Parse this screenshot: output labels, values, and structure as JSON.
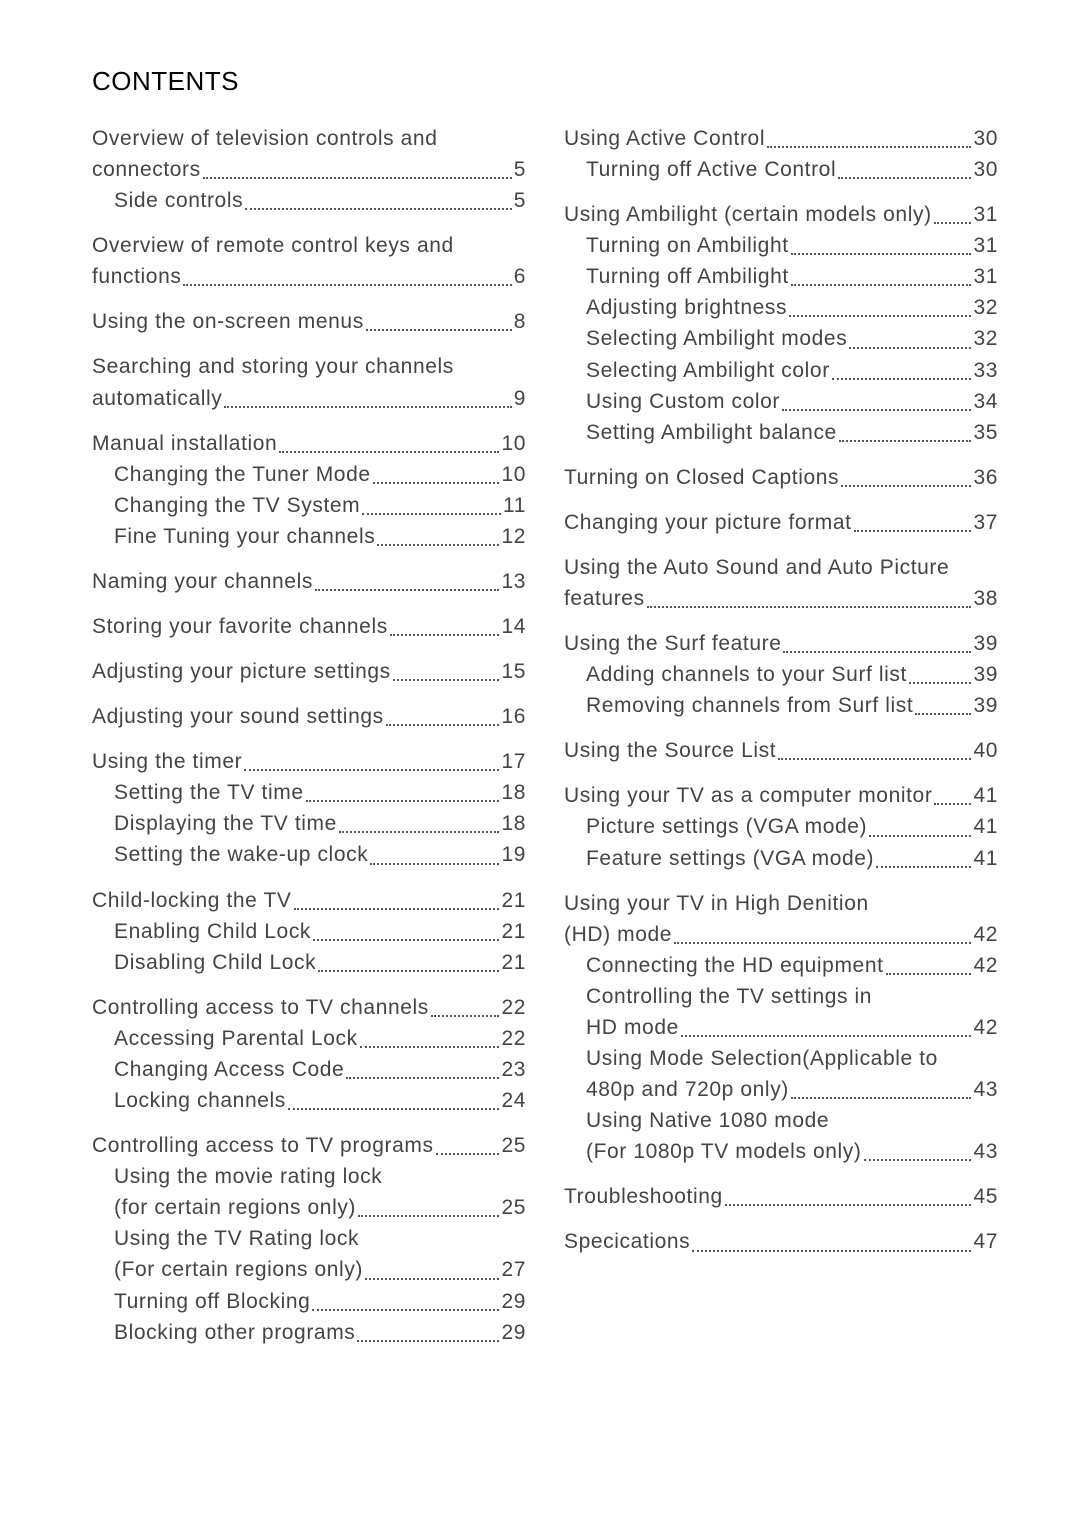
{
  "heading": "CONTENTS",
  "columns": {
    "left": [
      {
        "type": "section",
        "entries": [
          {
            "label": "Overview of television controls and",
            "wrap": "connectors",
            "page": "5"
          },
          {
            "label": "Side controls",
            "page": "5",
            "sub": true
          }
        ]
      },
      {
        "type": "section",
        "entries": [
          {
            "label": "Overview of remote control keys and",
            "wrap": "functions",
            "page": "6"
          }
        ]
      },
      {
        "type": "section",
        "entries": [
          {
            "label": "Using the on-screen menus",
            "page": "8"
          }
        ]
      },
      {
        "type": "section",
        "entries": [
          {
            "label": "Searching and storing your channels",
            "wrap": "automatically",
            "page": "9"
          }
        ]
      },
      {
        "type": "section",
        "entries": [
          {
            "label": "Manual installation",
            "page": "10"
          },
          {
            "label": "Changing the Tuner Mode",
            "page": "10",
            "sub": true
          },
          {
            "label": "Changing the TV System",
            "page": "11",
            "sub": true
          },
          {
            "label": "Fine Tuning your channels",
            "page": "12",
            "sub": true
          }
        ]
      },
      {
        "type": "section",
        "entries": [
          {
            "label": "Naming your channels",
            "page": "13"
          }
        ]
      },
      {
        "type": "section",
        "entries": [
          {
            "label": "Storing your favorite channels",
            "page": "14"
          }
        ]
      },
      {
        "type": "section",
        "entries": [
          {
            "label": "Adjusting your picture settings",
            "page": "15"
          }
        ]
      },
      {
        "type": "section",
        "entries": [
          {
            "label": "Adjusting your sound settings",
            "page": "16"
          }
        ]
      },
      {
        "type": "section",
        "entries": [
          {
            "label": "Using the timer",
            "page": "17"
          },
          {
            "label": "Setting the TV time",
            "page": "18",
            "sub": true
          },
          {
            "label": "Displaying the TV time",
            "page": "18",
            "sub": true
          },
          {
            "label": "Setting the wake-up clock",
            "page": "19",
            "sub": true
          }
        ]
      },
      {
        "type": "section",
        "entries": [
          {
            "label": "Child-locking the TV",
            "page": "21"
          },
          {
            "label": "Enabling Child Lock",
            "page": "21",
            "sub": true
          },
          {
            "label": "Disabling Child Lock",
            "page": "21",
            "sub": true
          }
        ]
      },
      {
        "type": "section",
        "entries": [
          {
            "label": "Controlling access to TV channels",
            "page": "22"
          },
          {
            "label": "Accessing Parental Lock",
            "page": "22",
            "sub": true
          },
          {
            "label": "Changing Access Code",
            "page": "23",
            "sub": true
          },
          {
            "label": "Locking channels",
            "page": "24",
            "sub": true
          }
        ]
      },
      {
        "type": "section",
        "entries": [
          {
            "label": "Controlling access to TV programs",
            "page": "25"
          },
          {
            "label": "Using the movie rating lock",
            "wrap": "(for certain regions only)",
            "page": "25",
            "sub": true
          },
          {
            "label": "Using the TV Rating lock",
            "wrap": "(For certain regions only)",
            "page": "27",
            "sub": true
          },
          {
            "label": "Turning off Blocking",
            "page": "29",
            "sub": true
          },
          {
            "label": "Blocking other programs",
            "page": "29",
            "sub": true
          }
        ]
      }
    ],
    "right": [
      {
        "type": "section",
        "entries": [
          {
            "label": "Using Active Control",
            "page": "30"
          },
          {
            "label": "Turning off Active Control",
            "page": "30",
            "sub": true
          }
        ]
      },
      {
        "type": "section",
        "entries": [
          {
            "label": "Using Ambilight (certain models only)",
            "page": "31"
          },
          {
            "label": "Turning on Ambilight",
            "page": "31",
            "sub": true
          },
          {
            "label": "Turning off Ambilight",
            "page": "31",
            "sub": true
          },
          {
            "label": "Adjusting brightness",
            "page": "32",
            "sub": true
          },
          {
            "label": "Selecting Ambilight modes",
            "page": "32",
            "sub": true
          },
          {
            "label": "Selecting Ambilight color",
            "page": "33",
            "sub": true
          },
          {
            "label": "Using Custom color",
            "page": "34",
            "sub": true
          },
          {
            "label": "Setting Ambilight balance",
            "page": "35",
            "sub": true
          }
        ]
      },
      {
        "type": "section",
        "entries": [
          {
            "label": "Turning on Closed Captions",
            "page": "36"
          }
        ]
      },
      {
        "type": "section",
        "entries": [
          {
            "label": "Changing your picture format",
            "page": "37"
          }
        ]
      },
      {
        "type": "section",
        "entries": [
          {
            "label": "Using the Auto Sound and Auto Picture",
            "wrap": "features",
            "page": "38"
          }
        ]
      },
      {
        "type": "section",
        "entries": [
          {
            "label": "Using the Surf feature",
            "page": "39"
          },
          {
            "label": "Adding channels to your Surf list",
            "page": "39",
            "sub": true
          },
          {
            "label": "Removing channels from Surf list",
            "page": "39",
            "sub": true
          }
        ]
      },
      {
        "type": "section",
        "entries": [
          {
            "label": "Using the Source List",
            "page": "40"
          }
        ]
      },
      {
        "type": "section",
        "entries": [
          {
            "label": "Using your TV as a computer monitor",
            "page": "41"
          },
          {
            "label": "Picture settings (VGA mode)",
            "page": "41",
            "sub": true
          },
          {
            "label": "Feature settings (VGA mode)",
            "page": "41",
            "sub": true
          }
        ]
      },
      {
        "type": "section",
        "entries": [
          {
            "label": "Using your TV in High Denition",
            "wrap": "(HD) mode",
            "page": "42"
          },
          {
            "label": "Connecting the HD equipment",
            "page": "42",
            "sub": true
          },
          {
            "label": "Controlling the TV settings in",
            "wrap": "HD mode",
            "page": "42",
            "sub": true
          },
          {
            "label": "Using Mode Selection(Applicable to",
            "wrap": "480p and 720p only)",
            "page": "43",
            "sub": true
          },
          {
            "label": "Using Native 1080 mode",
            "wrap": "(For 1080p TV models only)",
            "page": "43",
            "sub": true
          }
        ]
      },
      {
        "type": "section",
        "entries": [
          {
            "label": "Troubleshooting",
            "page": "45"
          }
        ]
      },
      {
        "type": "section",
        "entries": [
          {
            "label": "Specications",
            "page": "47"
          }
        ]
      }
    ]
  }
}
